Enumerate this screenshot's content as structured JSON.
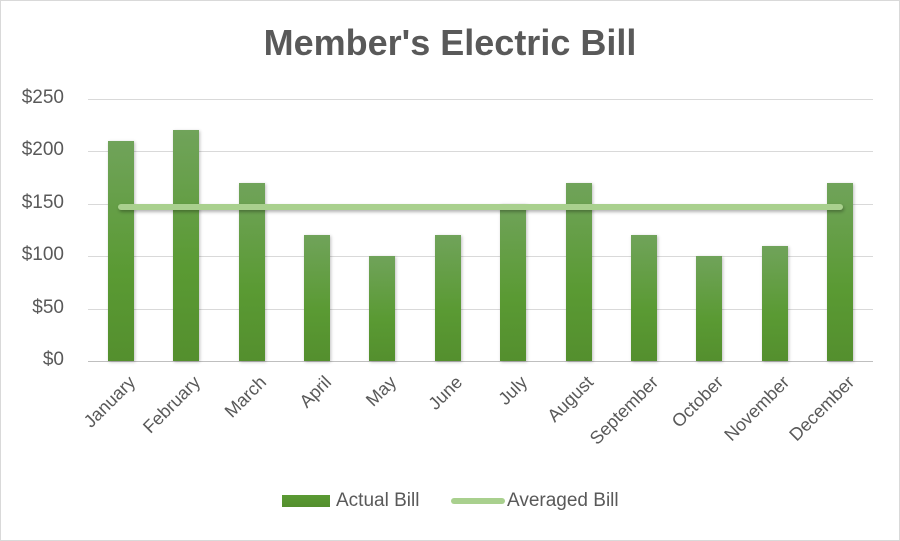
{
  "chart_data": {
    "type": "bar",
    "title": "Member's Electric Bill",
    "xlabel": "",
    "ylabel": "",
    "ylim": [
      0,
      250
    ],
    "yticks": [
      "$0",
      "$50",
      "$100",
      "$150",
      "$200",
      "$250"
    ],
    "grid": true,
    "legend_position": "bottom",
    "categories": [
      "January",
      "February",
      "March",
      "April",
      "May",
      "June",
      "July",
      "August",
      "September",
      "October",
      "November",
      "December"
    ],
    "series": [
      {
        "name": "Actual Bill",
        "type": "bar",
        "color": "#5a9a33",
        "values": [
          210,
          220,
          170,
          120,
          100,
          120,
          150,
          170,
          120,
          100,
          110,
          170
        ]
      },
      {
        "name": "Averaged Bill",
        "type": "line",
        "color": "#a9d08e",
        "values": [
          146.67,
          146.67,
          146.67,
          146.67,
          146.67,
          146.67,
          146.67,
          146.67,
          146.67,
          146.67,
          146.67,
          146.67
        ]
      }
    ]
  },
  "title": "Member's Electric Bill",
  "legend": {
    "bar_label": "Actual Bill",
    "line_label": "Averaged Bill"
  }
}
